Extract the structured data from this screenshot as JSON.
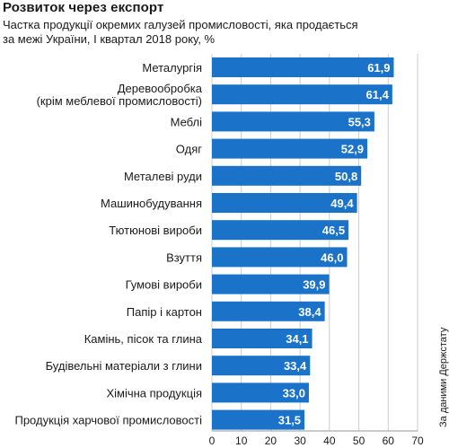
{
  "title": "Розвиток через експорт",
  "subtitle_line1": "Частка продукції окремих галузей промисловості, яка продається",
  "subtitle_line2": "за межі України, I квартал 2018 року, %",
  "source": "За даними Держстату",
  "colors": {
    "bar": "#1a73c8",
    "bar_label": "#ffffff",
    "grid": "#cccccc",
    "text": "#1a1a1a"
  },
  "chart_data": {
    "type": "bar",
    "orientation": "horizontal",
    "title": "Розвиток через експорт",
    "subtitle": "Частка продукції окремих галузей промисловості, яка продається за межі України, I квартал 2018 року, %",
    "categories": [
      [
        "Металургія"
      ],
      [
        "Деревообробка",
        "(крім меблевої промисловості)"
      ],
      [
        "Меблі"
      ],
      [
        "Одяг"
      ],
      [
        "Металеві руди"
      ],
      [
        "Машинобудування"
      ],
      [
        "Тютюнові вироби"
      ],
      [
        "Взуття"
      ],
      [
        "Гумові вироби"
      ],
      [
        "Папір і картон"
      ],
      [
        "Камінь, пісок та глина"
      ],
      [
        "Будівельні матеріали з глини"
      ],
      [
        "Хімічна продукція"
      ],
      [
        "Продукція харчової промисловості"
      ]
    ],
    "values": [
      61.9,
      61.4,
      55.3,
      52.9,
      50.8,
      49.4,
      46.5,
      46.0,
      39.9,
      38.4,
      34.1,
      33.4,
      33.0,
      31.5
    ],
    "value_labels": [
      "61,9",
      "61,4",
      "55,3",
      "52,9",
      "50,8",
      "49,4",
      "46,5",
      "46,0",
      "39,9",
      "38,4",
      "34,1",
      "33,4",
      "33,0",
      "31,5"
    ],
    "xlim": [
      0,
      70
    ],
    "xticks": [
      0,
      10,
      20,
      30,
      40,
      50,
      60,
      70
    ],
    "grid": true
  }
}
